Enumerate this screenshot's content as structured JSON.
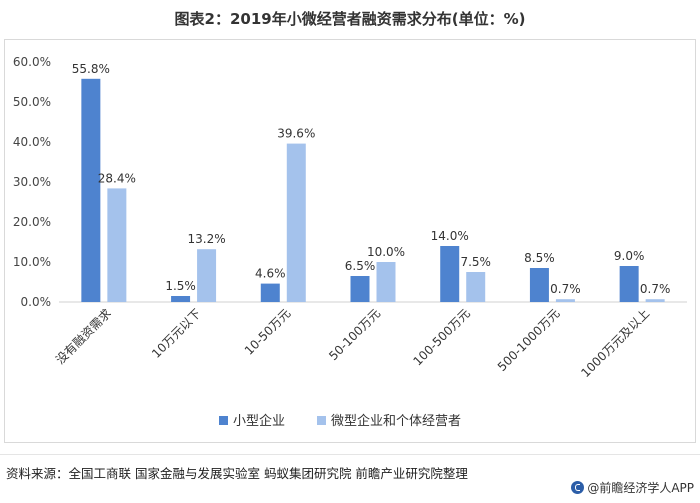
{
  "title": "图表2：2019年小微经营者融资需求分布(单位：%)",
  "source": "资料来源：全国工商联 国家金融与发展实验室 蚂蚁集团研究院 前瞻产业研究院整理",
  "brand": "@前瞻经济学人APP",
  "chart_data": {
    "type": "bar",
    "categories": [
      "没有融资需求",
      "10万元以下",
      "10-50万元",
      "50-100万元",
      "100-500万元",
      "500-1000万元",
      "1000万元及以上"
    ],
    "series": [
      {
        "name": "小型企业",
        "values": [
          55.8,
          1.5,
          4.6,
          6.5,
          14.0,
          8.5,
          9.0
        ],
        "color": "#4e83cf"
      },
      {
        "name": "微型企业和个体经营者",
        "values": [
          28.4,
          13.2,
          39.6,
          10.0,
          7.5,
          0.7,
          0.7
        ],
        "color": "#a4c2ec"
      }
    ],
    "ylim": [
      0,
      60
    ],
    "yticks": [
      "0.0%",
      "10.0%",
      "20.0%",
      "30.0%",
      "40.0%",
      "50.0%",
      "60.0%"
    ],
    "value_labels": [
      [
        "55.8%",
        "1.5%",
        "4.6%",
        "6.5%",
        "14.0%",
        "8.5%",
        "9.0%"
      ],
      [
        "28.4%",
        "13.2%",
        "39.6%",
        "10.0%",
        "7.5%",
        "0.7%",
        "0.7%"
      ]
    ],
    "legend_position": "bottom",
    "grid": false,
    "xlabel": "",
    "ylabel": ""
  }
}
